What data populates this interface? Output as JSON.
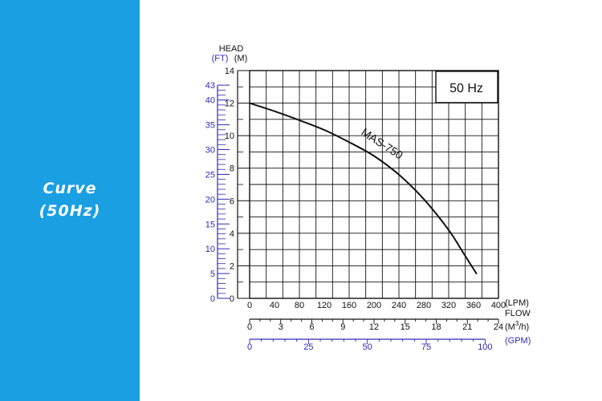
{
  "side_panel": {
    "line1": "Curve",
    "line2": "(50Hz)"
  },
  "colors": {
    "panel": "#1a9fe3",
    "blue_scale": "#2d2ab8",
    "ink": "#111111"
  },
  "chart_data": {
    "type": "line",
    "badge": "50 Hz",
    "series": [
      {
        "name": "MAS-750",
        "x": [
          0,
          40,
          80,
          120,
          160,
          200,
          240,
          280,
          320,
          345,
          365
        ],
        "y": [
          12,
          11.5,
          10.95,
          10.35,
          9.6,
          8.75,
          7.6,
          6.1,
          4.2,
          2.7,
          1.5
        ]
      }
    ],
    "xlim": [
      0,
      400
    ],
    "ylim": [
      0,
      14
    ],
    "grid": true,
    "axes": {
      "head_title": "HEAD",
      "m_unit": "(M)",
      "m_ticks": [
        "0",
        "2",
        "4",
        "6",
        "8",
        "10",
        "12",
        "14"
      ],
      "ft_unit": "(FT)",
      "ft_ticks": [
        "0",
        "5",
        "10",
        "15",
        "20",
        "25",
        "30",
        "35",
        "40",
        "43"
      ],
      "flow_title": "FLOW",
      "lpm_unit": "(LPM)",
      "lpm_ticks": [
        "0",
        "40",
        "80",
        "120",
        "160",
        "200",
        "240",
        "280",
        "320",
        "360",
        "400"
      ],
      "m3h_unit_main": "(M",
      "m3h_unit_sup": "3",
      "m3h_unit_tail": "/h)",
      "m3h_ticks": [
        "0",
        "3",
        "6",
        "9",
        "12",
        "15",
        "18",
        "21",
        "24"
      ],
      "gpm_unit": "(GPM)",
      "gpm_ticks": [
        "0",
        "25",
        "50",
        "75",
        "100"
      ]
    }
  }
}
